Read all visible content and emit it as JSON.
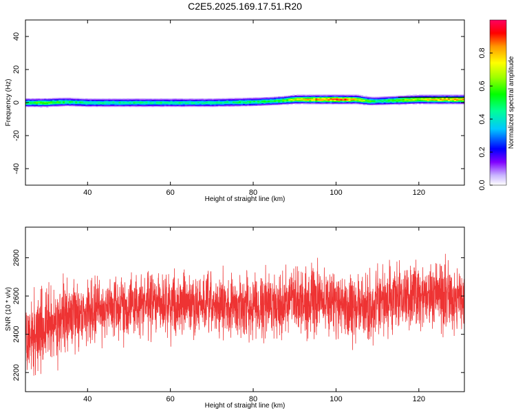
{
  "title": "C2E5.2025.169.17.51.R20",
  "chart_data": [
    {
      "type": "heatmap",
      "xlabel": "Height of straight line (km)",
      "ylabel": "Frequency (Hz)",
      "xlim": [
        25,
        131
      ],
      "ylim": [
        -50,
        50
      ],
      "xticks": [
        40,
        60,
        80,
        100,
        120
      ],
      "yticks": [
        40,
        20,
        0,
        -20,
        -40
      ],
      "colorbar": {
        "label": "Normalized spectral amplitude",
        "range": [
          0.0,
          1.0
        ],
        "ticks": [
          "0.0",
          "0.2",
          "0.4",
          "0.6",
          "0.8"
        ]
      },
      "ridge": {
        "x": [
          25,
          30,
          35,
          40,
          50,
          60,
          70,
          80,
          85,
          88,
          90,
          95,
          100,
          105,
          108,
          110,
          115,
          120,
          125,
          131
        ],
        "y": [
          0,
          0,
          0.5,
          0,
          0,
          0,
          0,
          0.5,
          1,
          1.5,
          2,
          2,
          2,
          2,
          1,
          1,
          1.5,
          2,
          2,
          2
        ],
        "amplitude": [
          0.5,
          0.6,
          0.5,
          0.45,
          0.45,
          0.45,
          0.45,
          0.5,
          0.5,
          0.6,
          0.7,
          0.8,
          0.9,
          0.75,
          0.55,
          0.45,
          0.6,
          0.7,
          0.8,
          0.8
        ],
        "halfwidth_hz": 3
      }
    },
    {
      "type": "line",
      "xlabel": "Height of straight line (km)",
      "ylabel": "SNR (10 * v/v)",
      "xlim": [
        25,
        131
      ],
      "ylim": [
        2100,
        2960
      ],
      "xticks": [
        40,
        60,
        80,
        100,
        120
      ],
      "yticks": [
        2800,
        2600,
        2400,
        2200
      ],
      "color": "#ee3333",
      "trend": {
        "x": [
          25,
          30,
          35,
          40,
          45,
          50,
          55,
          60,
          65,
          70,
          75,
          80,
          85,
          90,
          95,
          100,
          105,
          110,
          115,
          120,
          125,
          131
        ],
        "y": [
          2360,
          2440,
          2490,
          2520,
          2540,
          2550,
          2560,
          2560,
          2550,
          2550,
          2545,
          2550,
          2560,
          2570,
          2580,
          2570,
          2530,
          2545,
          2590,
          2610,
          2600,
          2600
        ]
      },
      "spread": {
        "x": [
          25,
          30,
          35,
          40,
          50,
          60,
          70,
          80,
          90,
          100,
          110,
          120,
          131
        ],
        "y": [
          200,
          170,
          150,
          140,
          140,
          140,
          140,
          140,
          150,
          150,
          150,
          150,
          150
        ]
      },
      "samples": 3000
    }
  ]
}
